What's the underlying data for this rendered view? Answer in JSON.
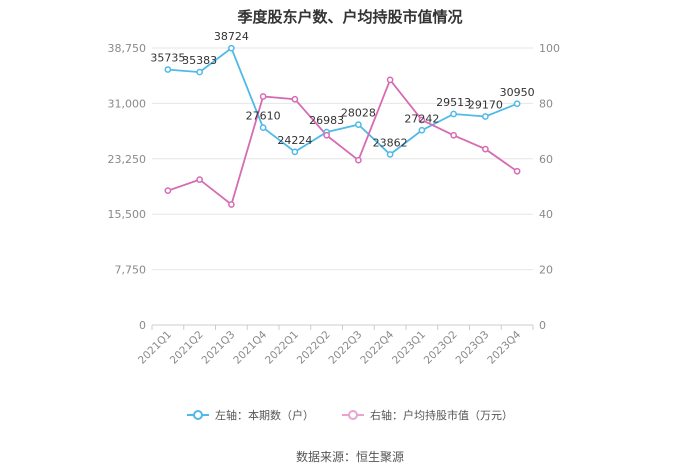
{
  "chart_data": {
    "type": "line",
    "title": "季度股东户数、户均持股市值情况",
    "categories": [
      "2021Q1",
      "2021Q2",
      "2021Q3",
      "2021Q4",
      "2022Q1",
      "2022Q2",
      "2022Q3",
      "2022Q4",
      "2023Q1",
      "2023Q2",
      "2023Q3",
      "2023Q4"
    ],
    "left_axis": {
      "ylim": [
        0,
        38750
      ],
      "ticks": [
        "0",
        "7,750",
        "15,500",
        "23,250",
        "31,000",
        "38,750"
      ],
      "tick_values": [
        0,
        7750,
        15500,
        23250,
        31000,
        38750
      ]
    },
    "right_axis": {
      "ylim": [
        0,
        100
      ],
      "ticks": [
        "0",
        "20",
        "40",
        "60",
        "80",
        "100"
      ],
      "tick_values": [
        0,
        20,
        40,
        60,
        80,
        100
      ]
    },
    "series": [
      {
        "name": "左轴：本期数（户）",
        "axis": "left",
        "color": "#4fb9e8",
        "values": [
          35735,
          35383,
          38724,
          27610,
          24224,
          26983,
          28028,
          23862,
          27242,
          29513,
          29170,
          30950
        ],
        "labels": [
          "35735",
          "35383",
          "38724",
          "27610",
          "24224",
          "26983",
          "28028",
          "23862",
          "27242",
          "29513",
          "29170",
          "30950"
        ]
      },
      {
        "name": "右轴：户均持股市值（万元）",
        "axis": "right",
        "color": "#d66bb3",
        "values": [
          48.5,
          52.5,
          43.5,
          82.5,
          81.5,
          68.5,
          59.5,
          88.5,
          74.0,
          68.5,
          63.5,
          55.5
        ]
      }
    ],
    "legend_position": "bottom",
    "grid": true
  },
  "source_text": "数据来源：恒生聚源"
}
